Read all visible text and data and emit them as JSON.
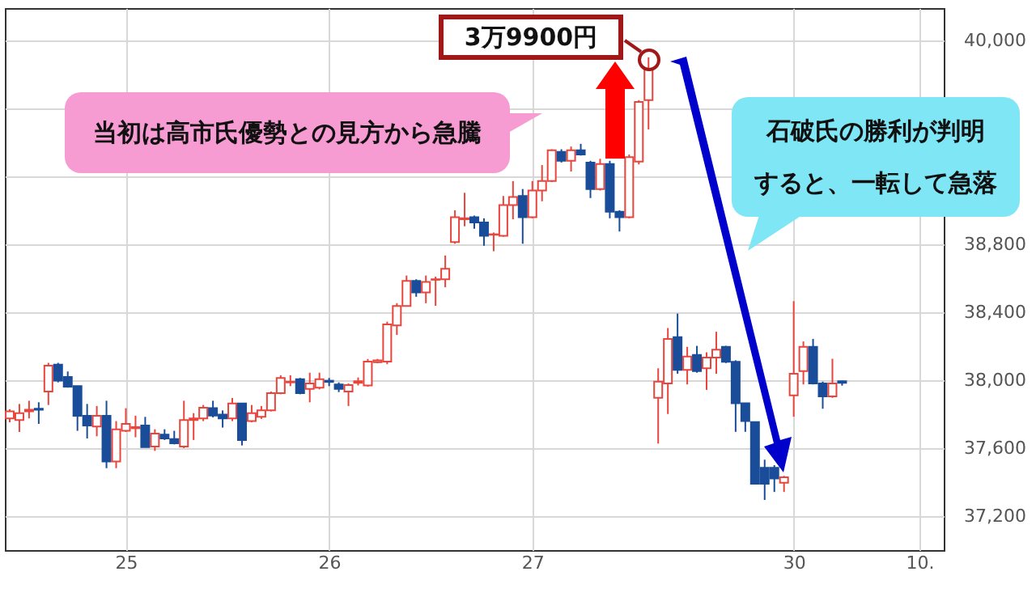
{
  "chart_data": {
    "type": "candlestick",
    "categories": [
      null,
      null,
      null,
      null,
      null,
      null,
      null,
      null,
      null,
      null,
      null,
      null,
      "25",
      null,
      null,
      null,
      null,
      null,
      null,
      null,
      null,
      null,
      null,
      null,
      null,
      null,
      null,
      null,
      null,
      null,
      null,
      null,
      null,
      "26",
      null,
      null,
      null,
      null,
      null,
      null,
      null,
      null,
      null,
      null,
      null,
      null,
      null,
      null,
      null,
      null,
      null,
      null,
      null,
      null,
      "27",
      null,
      null,
      null,
      null,
      null,
      null,
      null,
      null,
      null,
      null,
      null,
      null,
      null,
      null,
      null,
      null,
      null,
      null,
      null,
      null,
      null,
      null,
      null,
      null,
      null,
      null,
      "30",
      null,
      null,
      null,
      null,
      null,
      null,
      null,
      null,
      null,
      null,
      null,
      null,
      "10.",
      null,
      null
    ],
    "ohlc": [
      [
        37775,
        37829,
        37752,
        37816
      ],
      [
        37765,
        37860,
        37695,
        37806
      ],
      [
        37816,
        37879,
        37775,
        37826
      ],
      [
        37832,
        37870,
        37743,
        37826
      ],
      [
        37933,
        38102,
        37854,
        38086
      ],
      [
        38092,
        38102,
        37987,
        37997
      ],
      [
        38019,
        38051,
        37956,
        37962
      ],
      [
        37965,
        37965,
        37702,
        37790
      ],
      [
        37790,
        37860,
        37657,
        37733
      ],
      [
        37727,
        37848,
        37670,
        37790
      ],
      [
        37790,
        37879,
        37482,
        37521
      ],
      [
        37521,
        37759,
        37482,
        37711
      ],
      [
        37702,
        37835,
        37695,
        37743
      ],
      [
        37717,
        37791,
        37664,
        37724
      ],
      [
        37733,
        37784,
        37606,
        37606
      ],
      [
        37610,
        37711,
        37584,
        37686
      ],
      [
        37680,
        37711,
        37648,
        37657
      ],
      [
        37654,
        37702,
        37622,
        37629
      ],
      [
        37610,
        37879,
        37600,
        37765
      ],
      [
        37765,
        37806,
        37648,
        37775
      ],
      [
        37775,
        37854,
        37759,
        37838
      ],
      [
        37835,
        37879,
        37781,
        37791
      ],
      [
        37797,
        37822,
        37721,
        37775
      ],
      [
        37775,
        37895,
        37759,
        37863
      ],
      [
        37863,
        37863,
        37616,
        37648
      ],
      [
        37759,
        37854,
        37752,
        37806
      ],
      [
        37784,
        37848,
        37772,
        37822
      ],
      [
        37822,
        37933,
        37816,
        37924
      ],
      [
        37924,
        38029,
        37917,
        38013
      ],
      [
        37987,
        38029,
        37965,
        37991
      ],
      [
        38006,
        38013,
        37917,
        37924
      ],
      [
        37949,
        38044,
        37870,
        37981
      ],
      [
        37956,
        38044,
        37946,
        38006
      ],
      [
        37997,
        38013,
        37965,
        37990
      ],
      [
        37975,
        37987,
        37930,
        37949
      ],
      [
        37933,
        37981,
        37848,
        37971
      ],
      [
        37984,
        38016,
        37969,
        37994
      ],
      [
        37969,
        38125,
        37962,
        38109
      ],
      [
        38106,
        38125,
        38100,
        38116
      ],
      [
        38109,
        38344,
        38094,
        38328
      ],
      [
        38322,
        38453,
        38266,
        38437
      ],
      [
        38437,
        38616,
        38434,
        38584
      ],
      [
        38584,
        38594,
        38491,
        38516
      ],
      [
        38516,
        38616,
        38453,
        38578
      ],
      [
        38591,
        38609,
        38438,
        38594
      ],
      [
        38594,
        38734,
        38547,
        38656
      ],
      [
        38813,
        39000,
        38803,
        38959
      ],
      [
        38947,
        39103,
        38906,
        38953
      ],
      [
        38959,
        38969,
        38891,
        38928
      ],
      [
        38928,
        38953,
        38791,
        38850
      ],
      [
        38856,
        38869,
        38759,
        38859
      ],
      [
        38850,
        39084,
        38844,
        39031
      ],
      [
        39031,
        39172,
        38947,
        39078
      ],
      [
        39084,
        39125,
        38803,
        38959
      ],
      [
        38959,
        39172,
        38953,
        39116
      ],
      [
        39116,
        39266,
        39053,
        39172
      ],
      [
        39172,
        39359,
        39166,
        39353
      ],
      [
        39344,
        39359,
        39281,
        39291
      ],
      [
        39291,
        39375,
        39228,
        39353
      ],
      [
        39353,
        39391,
        39322,
        39328
      ],
      [
        39281,
        39291,
        39072,
        39125
      ],
      [
        39125,
        39303,
        39116,
        39272
      ],
      [
        39272,
        39291,
        38953,
        38991
      ],
      [
        38991,
        39000,
        38875,
        38959
      ],
      [
        38959,
        39328,
        38953,
        39313
      ],
      [
        39286,
        39648,
        39270,
        39638
      ],
      [
        39648,
        39900,
        39476,
        39829
      ],
      [
        37896,
        38070,
        37627,
        37991
      ],
      [
        37981,
        38307,
        37801,
        38243
      ],
      [
        38253,
        38392,
        38038,
        38060
      ],
      [
        38060,
        38196,
        37975,
        38139
      ],
      [
        38149,
        38202,
        38044,
        38054
      ],
      [
        38070,
        38164,
        37943,
        38133
      ],
      [
        38133,
        38285,
        38038,
        38180
      ],
      [
        38196,
        38202,
        38101,
        38108
      ],
      [
        38108,
        38117,
        37696,
        37864
      ],
      [
        37864,
        37864,
        37696,
        37760
      ],
      [
        37753,
        37753,
        37390,
        37390
      ],
      [
        37485,
        37532,
        37295,
        37390
      ],
      [
        37485,
        37500,
        37342,
        37421
      ],
      [
        37396,
        37437,
        37342,
        37428
      ],
      [
        37911,
        38465,
        37785,
        38038
      ],
      [
        38054,
        38228,
        37975,
        38196
      ],
      [
        38196,
        38243,
        37975,
        37981
      ],
      [
        37981,
        37991,
        37832,
        37905
      ],
      [
        37905,
        38126,
        37896,
        37981
      ],
      [
        37994,
        37997,
        37968,
        37984
      ],
      null,
      null,
      null,
      null,
      null,
      null,
      null,
      null,
      null,
      null
    ],
    "colors": [
      "#e8453c",
      "#e8453c",
      "#e8453c",
      "#1a4d99",
      "#e8453c",
      "#1a4d99",
      "#1a4d99",
      "#1a4d99",
      "#1a4d99",
      "#e8453c",
      "#1a4d99",
      "#e8453c",
      "#e8453c",
      "#e8453c",
      "#1a4d99",
      "#e8453c",
      "#1a4d99",
      "#1a4d99",
      "#e8453c",
      "#e8453c",
      "#e8453c",
      "#1a4d99",
      "#1a4d99",
      "#e8453c",
      "#1a4d99",
      "#e8453c",
      "#e8453c",
      "#e8453c",
      "#e8453c",
      "#e8453c",
      "#1a4d99",
      "#e8453c",
      "#e8453c",
      "#1a4d99",
      "#1a4d99",
      "#e8453c",
      "#e8453c",
      "#e8453c",
      "#e8453c",
      "#e8453c",
      "#e8453c",
      "#e8453c",
      "#1a4d99",
      "#e8453c",
      "#e8453c",
      "#e8453c",
      "#e8453c",
      "#e8453c",
      "#1a4d99",
      "#1a4d99",
      "#e8453c",
      "#e8453c",
      "#e8453c",
      "#1a4d99",
      "#e8453c",
      "#e8453c",
      "#e8453c",
      "#1a4d99",
      "#e8453c",
      "#1a4d99",
      "#1a4d99",
      "#e8453c",
      "#1a4d99",
      "#1a4d99",
      "#e8453c",
      "#e8453c",
      "#e8453c",
      "#e8453c",
      "#e8453c",
      "#1a4d99",
      "#e8453c",
      "#1a4d99",
      "#e8453c",
      "#e8453c",
      "#1a4d99",
      "#1a4d99",
      "#1a4d99",
      "#1a4d99",
      "#1a4d99",
      "#1a4d99",
      "#e8453c",
      "#e8453c",
      "#e8453c",
      "#1a4d99",
      "#1a4d99",
      "#e8453c",
      "#1a4d99",
      null,
      null,
      null,
      null,
      null,
      null,
      null,
      null,
      null,
      null
    ],
    "ylim": [
      37000,
      40190
    ],
    "yticks": [
      {
        "value": 37200,
        "label": "37,200"
      },
      {
        "value": 37600,
        "label": "37,600"
      },
      {
        "value": 38000,
        "label": "38,000"
      },
      {
        "value": 38400,
        "label": "38,400"
      },
      {
        "value": 38800,
        "label": "38,800"
      },
      {
        "value": 39200,
        "label": null
      },
      {
        "value": 39600,
        "label": null
      },
      {
        "value": 40000,
        "label": "40,000"
      }
    ],
    "grid": true,
    "annotations": [
      "3万9900円",
      "当初は高市氏優勢との見方から急騰",
      "石破氏の勝利が判明すると、一転して急落"
    ]
  }
}
